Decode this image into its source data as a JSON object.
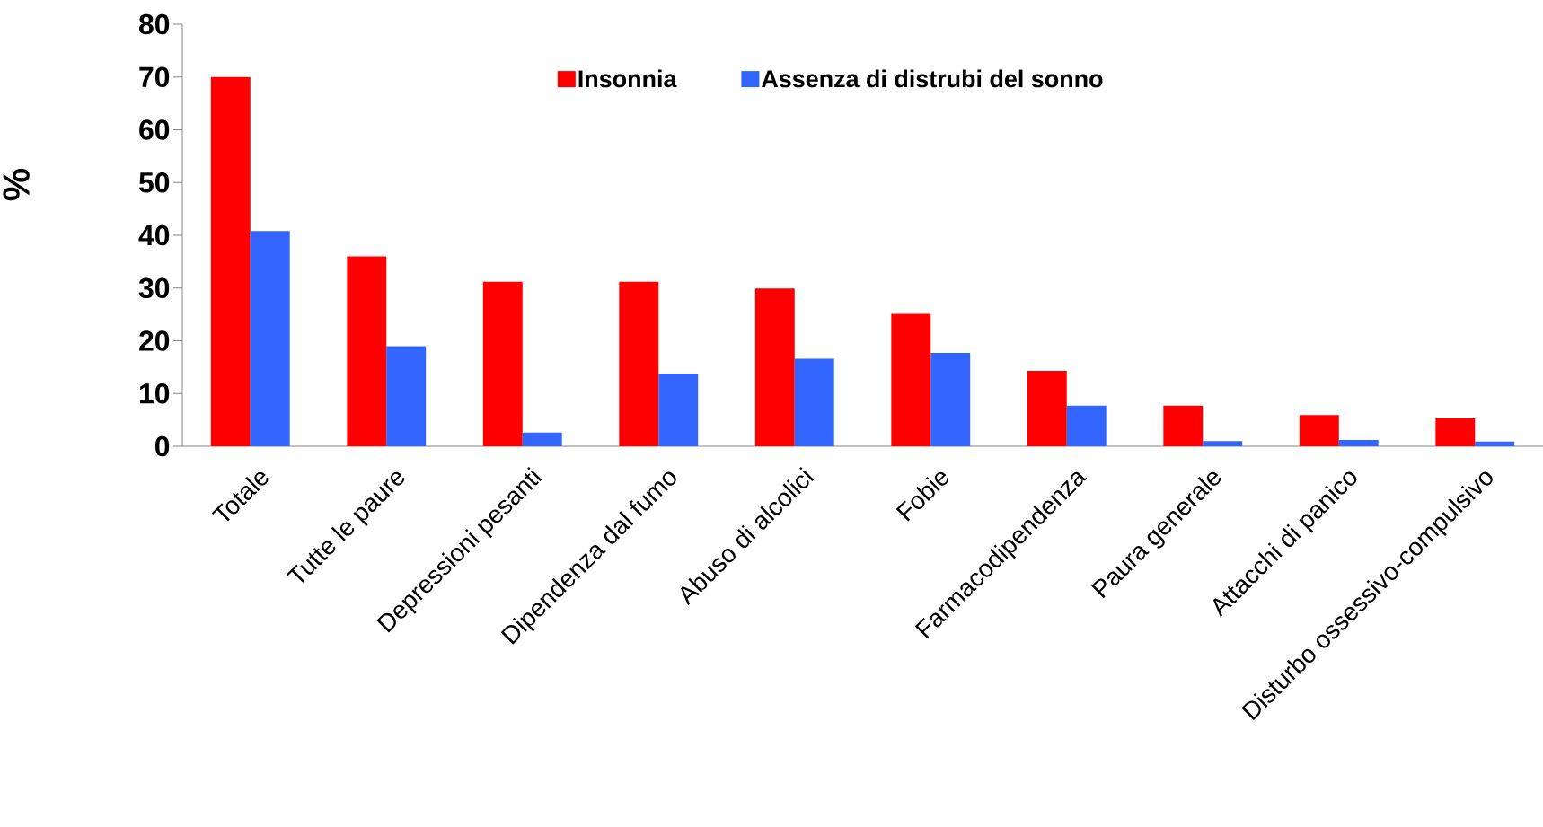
{
  "chart_data": {
    "type": "bar",
    "ylabel": "%",
    "categories": [
      "Totale",
      "Tutte le paure",
      "Depressioni pesanti",
      "Dipendenza dal fumo",
      "Abuso di alcolici",
      "Fobie",
      "Farmacodipendenza",
      "Paura generale",
      "Attacchi di panico",
      "Disturbo ossessivo-compulsivo"
    ],
    "series": [
      {
        "name": "Insonnia",
        "color": "#ff0000",
        "values": [
          70,
          36,
          31.2,
          31.2,
          29.9,
          25.1,
          14.3,
          7.7,
          5.9,
          5.3
        ]
      },
      {
        "name": "Assenza di distrubi del sonno",
        "color": "#3366ff",
        "values": [
          40.8,
          19,
          2.6,
          13.8,
          16.6,
          17.7,
          7.7,
          1.0,
          1.2,
          0.9
        ]
      }
    ],
    "ylim": [
      0,
      80
    ],
    "yticks": [
      0,
      10,
      20,
      30,
      40,
      50,
      60,
      70,
      80
    ],
    "grid": false,
    "legend": "top"
  }
}
